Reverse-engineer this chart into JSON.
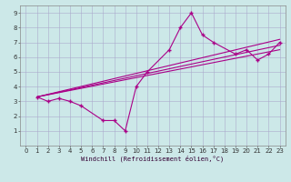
{
  "xlabel": "Windchill (Refroidissement éolien,°C)",
  "bg_color": "#cce8e8",
  "grid_color": "#aaaacc",
  "line_color": "#aa0088",
  "marker_color": "#aa0088",
  "xlim": [
    -0.5,
    23.5
  ],
  "ylim": [
    0,
    9.5
  ],
  "xticks": [
    0,
    1,
    2,
    3,
    4,
    5,
    6,
    7,
    8,
    9,
    10,
    11,
    12,
    13,
    14,
    15,
    16,
    17,
    18,
    19,
    20,
    21,
    22,
    23
  ],
  "yticks": [
    1,
    2,
    3,
    4,
    5,
    6,
    7,
    8,
    9
  ],
  "x_data": [
    1,
    2,
    3,
    4,
    5,
    7,
    8,
    9,
    10,
    11,
    13,
    14,
    15,
    16,
    17,
    19,
    20,
    21,
    22,
    23
  ],
  "y_data": [
    3.3,
    3.0,
    3.2,
    3.0,
    2.7,
    1.7,
    1.7,
    1.0,
    4.0,
    5.0,
    6.5,
    8.0,
    9.0,
    7.5,
    7.0,
    6.2,
    6.5,
    5.8,
    6.2,
    7.0
  ],
  "regression_lines": [
    {
      "x": [
        1,
        23
      ],
      "y": [
        3.3,
        7.2
      ]
    },
    {
      "x": [
        1,
        23
      ],
      "y": [
        3.3,
        6.8
      ]
    },
    {
      "x": [
        1,
        23
      ],
      "y": [
        3.3,
        6.5
      ]
    }
  ]
}
